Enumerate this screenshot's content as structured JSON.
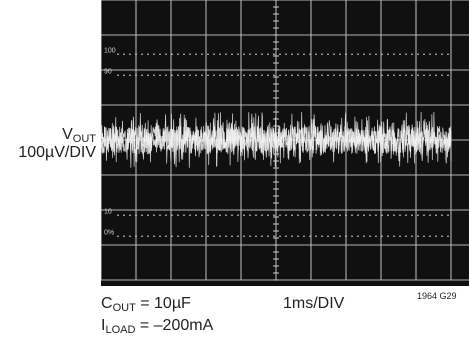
{
  "chart_data": {
    "type": "line",
    "title": "",
    "y_axis_label": {
      "name": "V",
      "sub": "OUT",
      "scale": "100µV/DIV"
    },
    "x_axis_label": "1ms/DIV",
    "conditions": [
      {
        "name": "C",
        "sub": "OUT",
        "rest": " = 10µF"
      },
      {
        "name": "I",
        "sub": "LOAD",
        "rest": " = –200mA"
      }
    ],
    "figure_id": "1964 G29",
    "reference_marks": [
      "100",
      "90",
      "10",
      "0%"
    ],
    "grid": true,
    "divisions": {
      "x": 10,
      "y": 8
    },
    "xlim": [
      0,
      10
    ],
    "ylim": [
      -400,
      400
    ],
    "series": [
      {
        "style": "dense white noise band",
        "x_range": [
          0,
          10
        ],
        "mean": 0,
        "typical_peak_to_peak": 100,
        "max_peak_to_peak": 160
      }
    ]
  },
  "colors": {
    "screen": "#101010",
    "grid": "#cfcfcf",
    "trace": "#f2f2f2",
    "text": "#231f20"
  }
}
